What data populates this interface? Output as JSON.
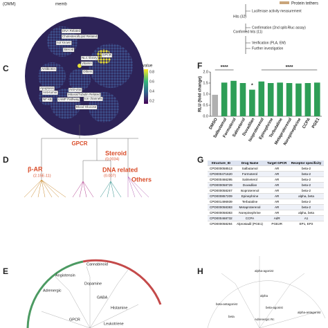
{
  "panels": {
    "top": {
      "omm": "(OMM)",
      "memb": "memb",
      "legend": "Protein tethers",
      "flow": [
        "Luciferase activity measurement",
        "Hits (32)",
        "Confirmation (2nd split-Rluc assay)",
        "Confirmed hits (11)",
        "Verification (PLA, EM)",
        "Further investigation"
      ]
    },
    "C": {
      "letter": "C",
      "labels": [
        "DNA Related",
        "Cholesterol/Lipid Related",
        "not known",
        "Steroid",
        "GPCR",
        "Antibiotics",
        "NLC library",
        "Vitamin",
        "Others",
        "Apoptosis",
        "Anti-tumor",
        "Anti-viral",
        "Mitosis/Tubulin Related",
        "NF-kB",
        "cAMP Pathway",
        "Ion channels",
        "Blood Glucose"
      ],
      "colorbar": {
        "title": "value",
        "ticks": [
          0.8,
          0.6,
          0.4,
          0.2
        ]
      }
    },
    "D": {
      "letter": "D",
      "root": "GPCR",
      "groups": [
        "β-AR",
        "Steroid",
        "DNA related",
        "Others"
      ],
      "pvalues": [
        "(2.15E-11)",
        "(0.0034)",
        "(0.007)"
      ]
    },
    "G": {
      "letter": "G",
      "header": [
        "Structure_ID",
        "Drug Name",
        "Target GPCR",
        "Receptor specificity"
      ],
      "rows": [
        [
          "CPD000058513",
          "Salbutamol",
          "AR",
          "beta-2"
        ],
        [
          "CPD000471620",
          "Formoterol",
          "AR",
          "beta-2"
        ],
        [
          "CPD000466295",
          "Salmeterol",
          "AR",
          "beta-2"
        ],
        [
          "CPD000058729",
          "Duvadilan",
          "AR",
          "beta-2"
        ],
        [
          "CPD000058267",
          "Isoproterenol",
          "AR",
          "beta-2"
        ],
        [
          "CPD000857209",
          "Epinephrine",
          "AR",
          "alpha, beta"
        ],
        [
          "CPD001496939",
          "Terbutaline",
          "AR",
          "beta-2"
        ],
        [
          "CPD000058383",
          "Metaproterenol",
          "AR",
          "beta-2"
        ],
        [
          "CPD000058383",
          "Norepinephrine",
          "AR",
          "alpha, beta"
        ],
        [
          "CPD000468732",
          "CCPA",
          "AdR",
          "A1"
        ],
        [
          "CPD000058294",
          "Alprostadil (PGE1)",
          "PGE2R",
          "EP1, EP2"
        ]
      ]
    },
    "E": {
      "letter": "E",
      "labels": [
        "Angiotensin",
        "Cannabinoid",
        "Dopamine",
        "GABA",
        "Adrenergic",
        "GPCR",
        "Histamine",
        "Leukotriene"
      ]
    },
    "H": {
      "letter": "H",
      "labels": [
        "alpha-agonist",
        "alpha",
        "beta-antagonist",
        "beta",
        "beta-agonist",
        "Adrenergic Rc",
        "alpha-antagonist"
      ]
    }
  },
  "chart_data": {
    "type": "bar",
    "letter": "F",
    "y_label": "RLU (fold change)",
    "categories": [
      "DMSO",
      "Salbutamol",
      "Formoterol",
      "Salmeterol",
      "Duvadilan",
      "Isoproterenol",
      "Epinephrine",
      "Terbutaline",
      "Metaproterenol",
      "Norepinephrine",
      "CCPA",
      "PGE1"
    ],
    "values": [
      0.97,
      1.52,
      1.6,
      1.5,
      1.2,
      1.57,
      1.5,
      1.52,
      1.5,
      1.48,
      1.5,
      1.52
    ],
    "colors": [
      "#b0b0b0",
      "#2e9e57",
      "#2e9e57",
      "#2e9e57",
      "#2e9e57",
      "#2e9e57",
      "#2e9e57",
      "#2e9e57",
      "#2e9e57",
      "#2e9e57",
      "#2e9e57",
      "#2e9e57"
    ],
    "ylim": [
      0,
      2.0
    ],
    "yticks": [
      {
        "value": 0,
        "label": "0.0"
      },
      {
        "value": 0.5,
        "label": "0.5"
      },
      {
        "value": 1,
        "label": "1.0"
      },
      {
        "value": 1.5,
        "label": "1.5"
      },
      {
        "value": 2,
        "label": "2.0"
      }
    ],
    "annotations": [
      "****",
      "*",
      "****"
    ]
  }
}
